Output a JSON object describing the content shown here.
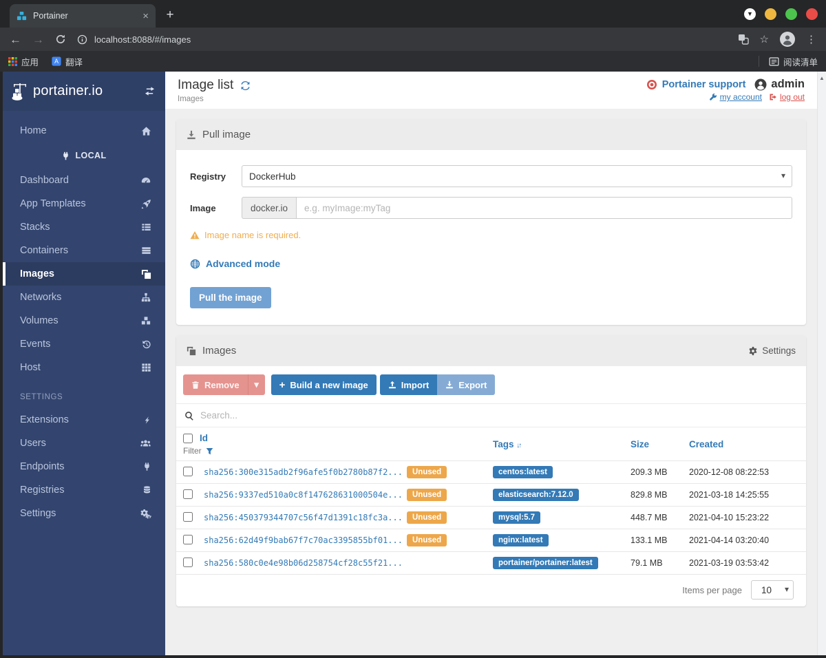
{
  "browser": {
    "tab_title": "Portainer",
    "url": "localhost:8088/#/images",
    "bookmarks": [
      "应用",
      "翻译"
    ],
    "reading_list": "阅读清单"
  },
  "sidebar": {
    "logo_text": "portainer.io",
    "home_label": "Home",
    "local_header": "LOCAL",
    "local_items": [
      {
        "label": "Dashboard",
        "icon": "tachometer-icon",
        "active": false
      },
      {
        "label": "App Templates",
        "icon": "rocket-icon",
        "active": false
      },
      {
        "label": "Stacks",
        "icon": "th-list-icon",
        "active": false
      },
      {
        "label": "Containers",
        "icon": "server-icon",
        "active": false
      },
      {
        "label": "Images",
        "icon": "clone-icon",
        "active": true
      },
      {
        "label": "Networks",
        "icon": "sitemap-icon",
        "active": false
      },
      {
        "label": "Volumes",
        "icon": "cubes-icon",
        "active": false
      },
      {
        "label": "Events",
        "icon": "history-icon",
        "active": false
      },
      {
        "label": "Host",
        "icon": "th-grid-icon",
        "active": false
      }
    ],
    "settings_header": "SETTINGS",
    "settings_items": [
      {
        "label": "Extensions",
        "icon": "bolt-icon",
        "active": false
      },
      {
        "label": "Users",
        "icon": "users-icon",
        "active": false
      },
      {
        "label": "Endpoints",
        "icon": "plug-icon",
        "active": false
      },
      {
        "label": "Registries",
        "icon": "database-icon",
        "active": false
      },
      {
        "label": "Settings",
        "icon": "cogs-icon",
        "active": false
      }
    ]
  },
  "header": {
    "title": "Image list",
    "breadcrumb": "Images",
    "support_label": "Portainer support",
    "username": "admin",
    "my_account_label": "my account",
    "log_out_label": "log out"
  },
  "pull_panel": {
    "title": "Pull image",
    "registry_label": "Registry",
    "registry_value": "DockerHub",
    "image_label": "Image",
    "image_addon": "docker.io",
    "image_placeholder": "e.g. myImage:myTag",
    "warning_text": "Image name is required.",
    "advanced_mode_label": "Advanced mode",
    "pull_button_label": "Pull the image"
  },
  "images_panel": {
    "title": "Images",
    "settings_label": "Settings",
    "remove_label": "Remove",
    "build_label": "Build a new image",
    "import_label": "Import",
    "export_label": "Export",
    "search_placeholder": "Search...",
    "table": {
      "id_header": "Id",
      "filter_label": "Filter",
      "tags_header": "Tags",
      "size_header": "Size",
      "created_header": "Created",
      "unused_label": "Unused",
      "rows": [
        {
          "id": "sha256:300e315adb2f96afe5f0b2780b87f2...",
          "unused": true,
          "tag": "centos:latest",
          "size": "209.3 MB",
          "created": "2020-12-08 08:22:53"
        },
        {
          "id": "sha256:9337ed510a0c8f147628631000504e...",
          "unused": true,
          "tag": "elasticsearch:7.12.0",
          "size": "829.8 MB",
          "created": "2021-03-18 14:25:55"
        },
        {
          "id": "sha256:450379344707c56f47d1391c18fc3a...",
          "unused": true,
          "tag": "mysql:5.7",
          "size": "448.7 MB",
          "created": "2021-04-10 15:23:22"
        },
        {
          "id": "sha256:62d49f9bab67f7c70ac3395855bf01...",
          "unused": true,
          "tag": "nginx:latest",
          "size": "133.1 MB",
          "created": "2021-04-14 03:20:40"
        },
        {
          "id": "sha256:580c0e4e98b06d258754cf28c55f21...",
          "unused": false,
          "tag": "portainer/portainer:latest",
          "size": "79.1 MB",
          "created": "2021-03-19 03:53:42"
        }
      ]
    },
    "items_per_page_label": "Items per page",
    "items_per_page_value": "10"
  },
  "colors": {
    "accent_blue": "#337ab7",
    "sidebar_navy": "#33456e",
    "warning_orange": "#f0ad4e",
    "unused_badge": "#eda74a",
    "danger_red": "#d9534f"
  }
}
